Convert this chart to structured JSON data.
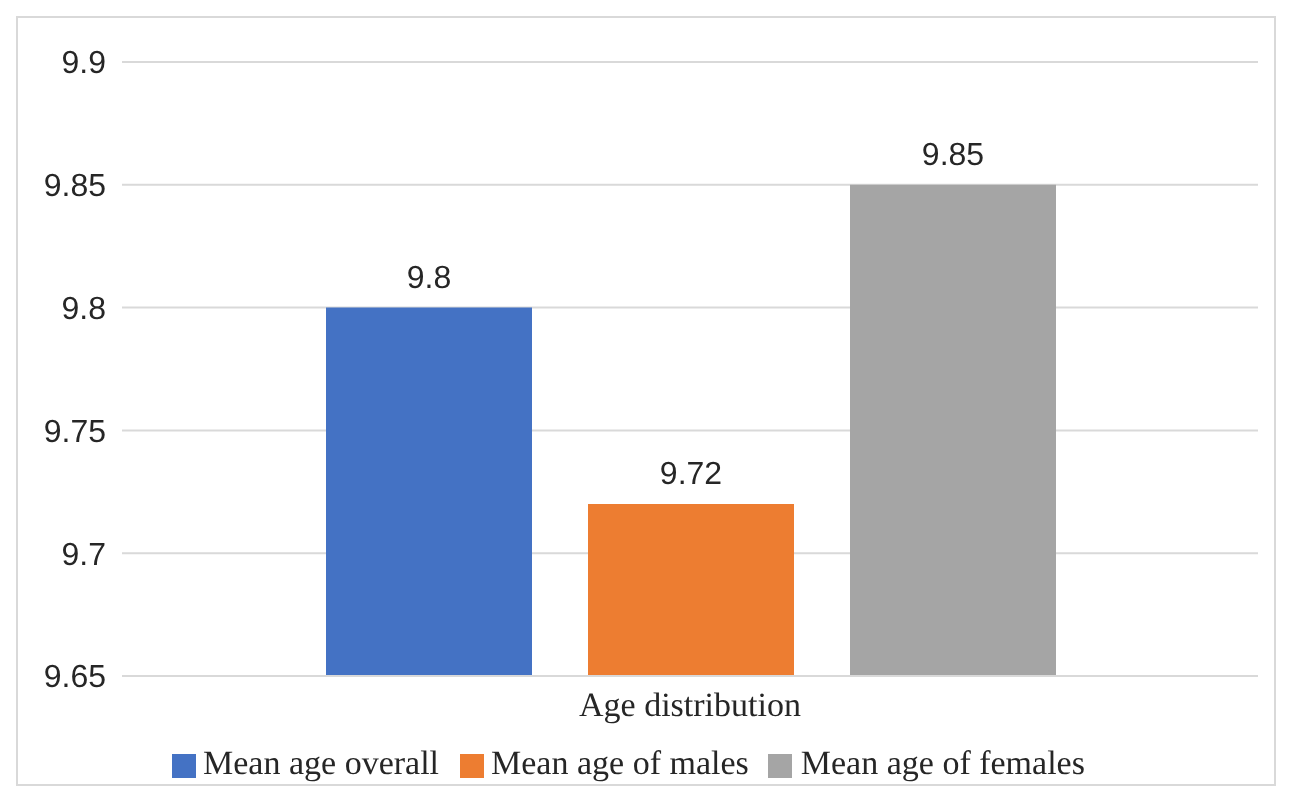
{
  "chart_data": {
    "type": "bar",
    "categories": [
      "Age distribution"
    ],
    "series": [
      {
        "name": "Mean age overall",
        "color": "#4472c4",
        "values": [
          9.8
        ]
      },
      {
        "name": "Mean age of males",
        "color": "#ed7d31",
        "values": [
          9.72
        ]
      },
      {
        "name": "Mean age of females",
        "color": "#a5a5a5",
        "values": [
          9.85
        ]
      }
    ],
    "ylim": [
      9.65,
      9.9
    ],
    "yticks": [
      9.65,
      9.7,
      9.75,
      9.8,
      9.85,
      9.9
    ],
    "grid": "y",
    "legend": "bottom",
    "data_labels": true
  }
}
